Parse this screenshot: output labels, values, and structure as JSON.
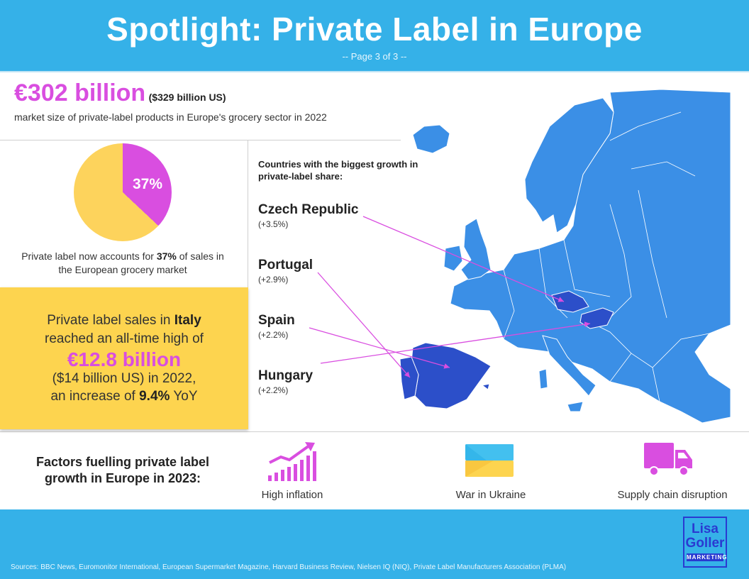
{
  "header": {
    "title": "Spotlight: Private Label in Europe",
    "page": "-- Page 3 of 3 --"
  },
  "market_size": {
    "value": "€302 billion",
    "usd": "($329 billion US)",
    "description": "market size of private-label products in Europe's grocery sector in 2022"
  },
  "share_pie": {
    "label": "37%",
    "private_label_fraction": 0.37,
    "colors": {
      "private_label": "#d94ee0",
      "other": "#fdd35c"
    },
    "caption_before": "Private label now accounts for ",
    "caption_bold": "37%",
    "caption_after": " of sales in the European grocery market"
  },
  "italy": {
    "line1_before": "Private label sales in ",
    "line1_bold": "Italy",
    "line2": "reached an all-time high of",
    "amount": "€12.8 billion",
    "line4": "($14 billion US) in 2022,",
    "line5_before": "an increase of ",
    "line5_bold": "9.4%",
    "line5_after": " YoY"
  },
  "growth": {
    "heading": "Countries with the biggest growth in private-label share:",
    "countries": [
      {
        "name": "Czech Republic",
        "change": "(+3.5%)"
      },
      {
        "name": "Portugal",
        "change": "(+2.9%)"
      },
      {
        "name": "Spain",
        "change": "(+2.2%)"
      },
      {
        "name": "Hungary",
        "change": "(+2.2%)"
      }
    ]
  },
  "factors": {
    "title": "Factors fuelling private label growth in Europe in 2023:",
    "items": [
      {
        "label": "High inflation",
        "icon": "rising-bars-arrow-icon"
      },
      {
        "label": "War in Ukraine",
        "icon": "ukraine-flag-icon"
      },
      {
        "label": "Supply chain disruption",
        "icon": "delivery-truck-icon"
      }
    ]
  },
  "footer": {
    "sources": "Sources: BBC News, Euromonitor International, European Supermarket Magazine, Harvard Business Review, Nielsen IQ (NIQ), Private Label Manufacturers Association (PLMA)",
    "logo": {
      "line1": "Lisa",
      "line2": "Goller",
      "line3": "MARKETING"
    }
  },
  "colors": {
    "header_blue": "#35b1e8",
    "accent_magenta": "#d94ee0",
    "highlight_yellow": "#fdd44f",
    "map_blue": "#3b8fe6",
    "map_highlight": "#2c4fc9"
  }
}
